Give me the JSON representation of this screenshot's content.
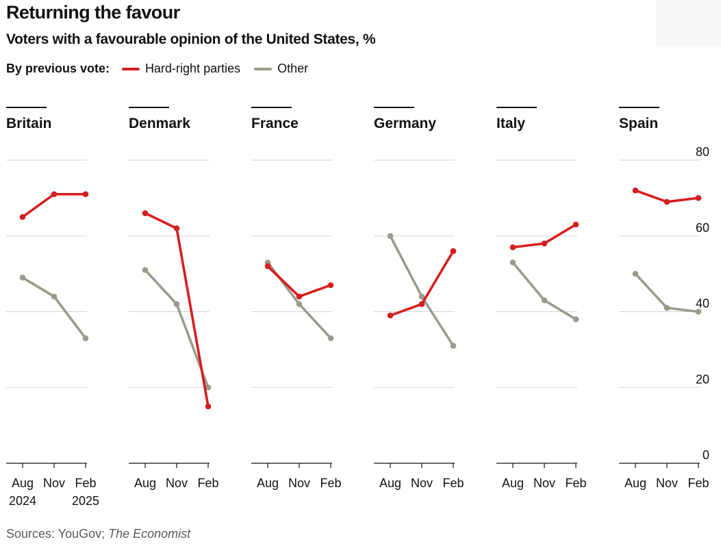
{
  "title": "Returning the favour",
  "subtitle": "Voters with a favourable opinion of the United States, %",
  "legend": {
    "lead": "By previous vote:",
    "items": [
      {
        "name": "Hard-right parties",
        "color": "#d61e1e"
      },
      {
        "name": "Other",
        "color": "#9a9a8e"
      }
    ]
  },
  "source_prefix": "Sources: YouGov; ",
  "source_italic": "The Economist",
  "chart_data": {
    "type": "line",
    "x": [
      "Aug",
      "Nov",
      "Feb"
    ],
    "x_year_labels": [
      "2024",
      "",
      "2025"
    ],
    "ylim": [
      0,
      80
    ],
    "yticks": [
      0,
      20,
      40,
      60,
      80
    ],
    "grid": true,
    "legend_placement": "top-left",
    "series_colors": {
      "Hard-right parties": "#d61e1e",
      "Other": "#9a9a8e"
    },
    "panels": [
      {
        "name": "Britain",
        "series": [
          {
            "name": "Hard-right parties",
            "values": [
              65,
              71,
              71
            ]
          },
          {
            "name": "Other",
            "values": [
              49,
              44,
              33
            ]
          }
        ]
      },
      {
        "name": "Denmark",
        "series": [
          {
            "name": "Hard-right parties",
            "values": [
              66,
              62,
              15
            ]
          },
          {
            "name": "Other",
            "values": [
              51,
              42,
              20
            ]
          }
        ]
      },
      {
        "name": "France",
        "series": [
          {
            "name": "Hard-right parties",
            "values": [
              52,
              44,
              47
            ]
          },
          {
            "name": "Other",
            "values": [
              53,
              42,
              33
            ]
          }
        ]
      },
      {
        "name": "Germany",
        "series": [
          {
            "name": "Hard-right parties",
            "values": [
              39,
              42,
              56
            ]
          },
          {
            "name": "Other",
            "values": [
              60,
              44,
              31
            ]
          }
        ]
      },
      {
        "name": "Italy",
        "series": [
          {
            "name": "Hard-right parties",
            "values": [
              57,
              58,
              63
            ]
          },
          {
            "name": "Other",
            "values": [
              53,
              43,
              38
            ]
          }
        ]
      },
      {
        "name": "Spain",
        "series": [
          {
            "name": "Hard-right parties",
            "values": [
              72,
              69,
              70
            ]
          },
          {
            "name": "Other",
            "values": [
              50,
              41,
              40
            ]
          }
        ]
      }
    ]
  }
}
